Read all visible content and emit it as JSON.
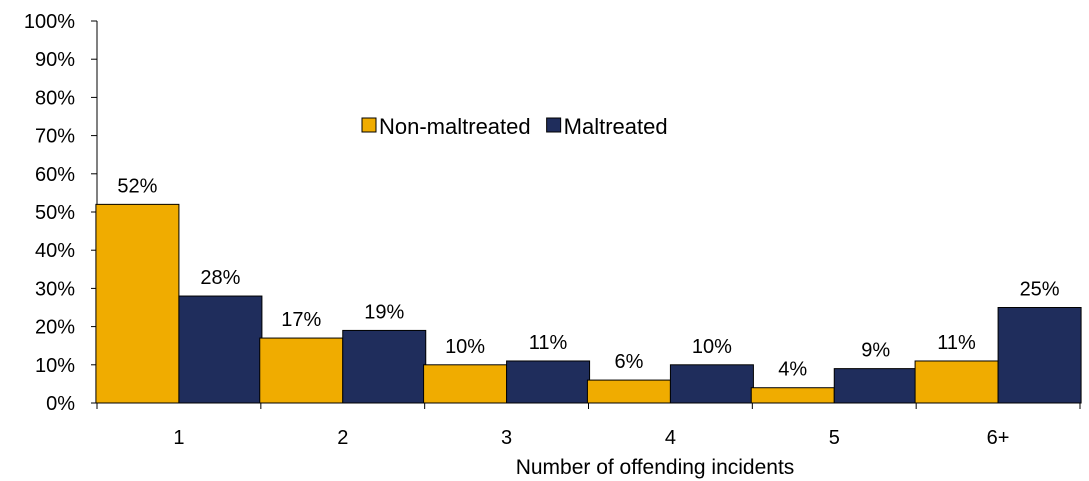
{
  "chart_data": {
    "type": "bar",
    "categories": [
      "1",
      "2",
      "3",
      "4",
      "5",
      "6+"
    ],
    "series": [
      {
        "name": "Non-maltreated",
        "values": [
          52,
          17,
          10,
          6,
          4,
          11
        ],
        "labels": [
          "52%",
          "17%",
          "10%",
          "6%",
          "4%",
          "11%"
        ],
        "color": "#f0ac00"
      },
      {
        "name": "Maltreated",
        "values": [
          28,
          19,
          11,
          10,
          9,
          25
        ],
        "labels": [
          "28%",
          "19%",
          "11%",
          "10%",
          "9%",
          "25%"
        ],
        "color": "#1f2d5c"
      }
    ],
    "title": "",
    "xlabel": "Number of offending incidents",
    "ylabel": "",
    "ylim": [
      0,
      100
    ],
    "yticks": [
      "0%",
      "10%",
      "20%",
      "30%",
      "40%",
      "50%",
      "60%",
      "70%",
      "80%",
      "90%",
      "100%"
    ],
    "grid": false,
    "legend_position": "top-center"
  }
}
